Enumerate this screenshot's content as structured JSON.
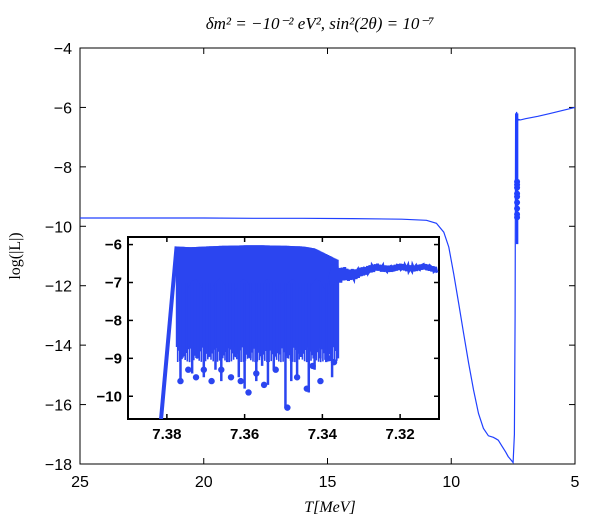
{
  "chart_data": [
    {
      "type": "line",
      "title": "δm² = −10⁻²  eV², sin²(2θ) = 10⁻⁷",
      "xlabel": "T[MeV]",
      "ylabel": "log(|L|)",
      "xlim": [
        25,
        5
      ],
      "ylim": [
        -18,
        -4
      ],
      "xticks": [
        "25",
        "20",
        "15",
        "10",
        "5"
      ],
      "yticks": [
        "−4",
        "−6",
        "−8",
        "−10",
        "−12",
        "−14",
        "−16",
        "−18"
      ],
      "xtick_values": [
        25,
        20,
        15,
        10,
        5
      ],
      "ytick_values": [
        -4,
        -6,
        -8,
        -10,
        -12,
        -14,
        -16,
        -18
      ],
      "grid": false,
      "series": [
        {
          "color": "#2040ff",
          "x": [
            25,
            22,
            20,
            18,
            16,
            14,
            12,
            11,
            10.6,
            10.3,
            10.1,
            9.9,
            9.7,
            9.5,
            9.3,
            9.1,
            8.9,
            8.7,
            8.5,
            8.3,
            8.2,
            8.1,
            7.95,
            7.8,
            7.7,
            7.6,
            7.5,
            7.45,
            7.42,
            7.4,
            7.38,
            7.36,
            7.34,
            7.32,
            7.3,
            7.2,
            7.0,
            6.5,
            6.0,
            5.5,
            5.0
          ],
          "values": [
            -9.72,
            -9.72,
            -9.72,
            -9.73,
            -9.73,
            -9.74,
            -9.76,
            -9.8,
            -9.9,
            -10.2,
            -10.7,
            -11.6,
            -12.6,
            -13.6,
            -14.6,
            -15.5,
            -16.3,
            -16.8,
            -17.05,
            -17.1,
            -17.15,
            -17.2,
            -17.4,
            -17.6,
            -17.75,
            -17.85,
            -17.95,
            -17.0,
            -13.0,
            -6.2,
            -6.3,
            -6.15,
            -6.3,
            -6.45,
            -6.4,
            -6.42,
            -6.38,
            -6.3,
            -6.2,
            -6.1,
            -6.0
          ]
        }
      ],
      "markers": {
        "color": "#2040ff",
        "x": [
          7.34,
          7.34,
          7.34,
          7.34,
          7.34,
          7.34,
          7.34,
          7.34,
          7.34
        ],
        "values": [
          -8.5,
          -8.7,
          -8.9,
          -9.0,
          -9.2,
          -9.4,
          -9.6,
          -9.7,
          -8.6
        ]
      }
    },
    {
      "type": "line",
      "title": "",
      "xlabel": "",
      "ylabel": "",
      "xlim": [
        7.39,
        7.31
      ],
      "ylim": [
        -10.6,
        -5.8
      ],
      "xticks": [
        "7.38",
        "7.36",
        "7.34",
        "7.32"
      ],
      "yticks": [
        "−6",
        "−7",
        "−8",
        "−9",
        "−10"
      ],
      "xtick_values": [
        7.38,
        7.36,
        7.34,
        7.32
      ],
      "ytick_values": [
        -6,
        -7,
        -8,
        -9,
        -10
      ],
      "grid": false,
      "series": [
        {
          "color": "#2b45f0",
          "envelope_top": {
            "x": [
              7.3815,
              7.3775,
              7.374,
              7.37,
              7.365,
              7.36,
              7.355,
              7.35,
              7.345,
              7.342,
              7.34,
              7.338,
              7.336,
              7.334,
              7.332,
              7.33,
              7.328,
              7.326,
              7.324,
              7.322,
              7.32,
              7.318,
              7.316,
              7.314,
              7.312,
              7.3105
            ],
            "values": [
              -10.6,
              -6.05,
              -6.07,
              -6.05,
              -6.03,
              -6.02,
              -6.02,
              -6.03,
              -6.05,
              -6.1,
              -6.2,
              -6.3,
              -6.4,
              -6.45,
              -6.5,
              -6.45,
              -6.4,
              -6.35,
              -6.4,
              -6.4,
              -6.35,
              -6.4,
              -6.4,
              -6.35,
              -6.4,
              -6.45
            ]
          },
          "spikes": {
            "x": [
              7.3765,
              7.375,
              7.3735,
              7.372,
              7.3705,
              7.369,
              7.3675,
              7.366,
              7.3645,
              7.363,
              7.3615,
              7.36,
              7.3585,
              7.357,
              7.3555,
              7.354,
              7.3525,
              7.351,
              7.3495,
              7.348,
              7.3465,
              7.345,
              7.3435,
              7.342,
              7.3405,
              7.339,
              7.3375,
              7.336
            ],
            "values": [
              -9.6,
              -8.8,
              -9.4,
              -9.0,
              -9.5,
              -8.9,
              -9.3,
              -9.6,
              -9.1,
              -8.7,
              -9.5,
              -9.8,
              -9.0,
              -9.6,
              -9.2,
              -9.7,
              -9.3,
              -8.9,
              -10.3,
              -9.6,
              -9.5,
              -8.8,
              -9.9,
              -9.3,
              -9.0,
              -9.1,
              -9.5,
              -9.0
            ]
          },
          "dots": {
            "x": [
              7.3765,
              7.3745,
              7.3725,
              7.3705,
              7.3685,
              7.366,
              7.3635,
              7.361,
              7.359,
              7.357,
              7.355,
              7.352,
              7.349,
              7.3465,
              7.344,
              7.3425,
              7.3405,
              7.3385,
              7.337
            ],
            "values": [
              -9.6,
              -9.3,
              -9.5,
              -9.3,
              -9.6,
              -9.3,
              -9.5,
              -9.6,
              -9.9,
              -9.4,
              -9.7,
              -9.3,
              -10.3,
              -9.5,
              -9.8,
              -9.2,
              -9.6,
              -9.0,
              -9.1
            ]
          }
        }
      ]
    }
  ]
}
